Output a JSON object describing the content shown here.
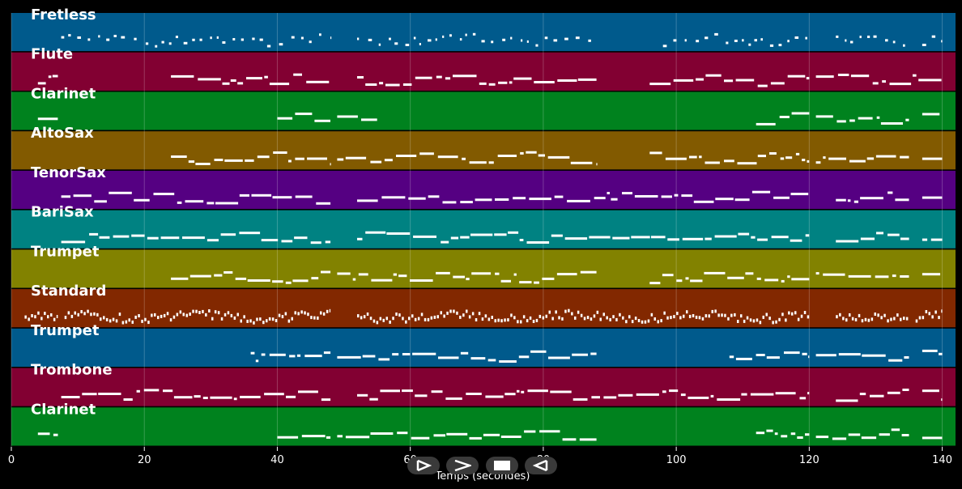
{
  "chart_data": {
    "type": "piano-roll",
    "xlabel": "Temps (secondes)",
    "xlim": [
      0,
      142
    ],
    "xticks": [
      0,
      20,
      40,
      60,
      80,
      100,
      120,
      140
    ],
    "grid": true,
    "tracks": [
      {
        "name": "Fretless",
        "color": "#005a8c",
        "segments": [
          [
            7.5,
            48
          ],
          [
            52,
            88
          ],
          [
            98,
            120
          ],
          [
            124,
            135
          ],
          [
            137,
            140
          ]
        ],
        "style": "dots",
        "contour": 1
      },
      {
        "name": "Flute",
        "color": "#820032",
        "segments": [
          [
            4,
            7
          ],
          [
            24,
            48
          ],
          [
            52,
            88
          ],
          [
            96,
            120
          ],
          [
            121,
            140
          ]
        ],
        "style": "dash",
        "contour": 2
      },
      {
        "name": "Clarinet",
        "color": "#00821e",
        "segments": [
          [
            4,
            7
          ],
          [
            40,
            48
          ],
          [
            49,
            55
          ],
          [
            112,
            120
          ],
          [
            121,
            135
          ],
          [
            137,
            140
          ]
        ],
        "style": "dash",
        "contour": 3
      },
      {
        "name": "AltoSax",
        "color": "#825a00",
        "segments": [
          [
            24,
            48
          ],
          [
            49,
            88
          ],
          [
            96,
            120
          ],
          [
            121,
            135
          ],
          [
            137,
            140
          ]
        ],
        "style": "dash",
        "contour": 4
      },
      {
        "name": "TenorSax",
        "color": "#550082",
        "segments": [
          [
            7.5,
            48
          ],
          [
            52,
            120
          ],
          [
            124,
            135
          ],
          [
            137,
            140
          ]
        ],
        "style": "dash",
        "contour": 5
      },
      {
        "name": "BariSax",
        "color": "#008282",
        "segments": [
          [
            7.5,
            48
          ],
          [
            52,
            120
          ],
          [
            124,
            135
          ],
          [
            137,
            140
          ]
        ],
        "style": "dash",
        "contour": 6
      },
      {
        "name": "Trumpet",
        "color": "#828200",
        "segments": [
          [
            24,
            48
          ],
          [
            49,
            88
          ],
          [
            96,
            120
          ],
          [
            121,
            135
          ],
          [
            137,
            140
          ]
        ],
        "style": "dash",
        "contour": 7
      },
      {
        "name": "Standard",
        "color": "#822800",
        "segments": [
          [
            2,
            7
          ],
          [
            8,
            48
          ],
          [
            52,
            88
          ],
          [
            88,
            120
          ],
          [
            124,
            135
          ],
          [
            136,
            140
          ]
        ],
        "style": "drums",
        "contour": 8
      },
      {
        "name": "Trumpet",
        "color": "#005a8c",
        "segments": [
          [
            36,
            48
          ],
          [
            49,
            88
          ],
          [
            108,
            120
          ],
          [
            121,
            135
          ],
          [
            137,
            140
          ]
        ],
        "style": "dash",
        "contour": 9
      },
      {
        "name": "Trombone",
        "color": "#820032",
        "segments": [
          [
            7.5,
            48
          ],
          [
            52,
            120
          ],
          [
            124,
            135
          ],
          [
            137,
            140
          ]
        ],
        "style": "dash",
        "contour": 10
      },
      {
        "name": "Clarinet",
        "color": "#00821e",
        "segments": [
          [
            4,
            7
          ],
          [
            40,
            48
          ],
          [
            49,
            88
          ],
          [
            112,
            120
          ],
          [
            121,
            135
          ],
          [
            137,
            140
          ]
        ],
        "style": "dash",
        "contour": 11
      }
    ]
  },
  "controls": [
    {
      "name": "play",
      "icon": "play-icon"
    },
    {
      "name": "fast-forward",
      "icon": "fast-forward-icon"
    },
    {
      "name": "stop",
      "icon": "stop-icon"
    },
    {
      "name": "rewind",
      "icon": "rewind-icon"
    }
  ]
}
